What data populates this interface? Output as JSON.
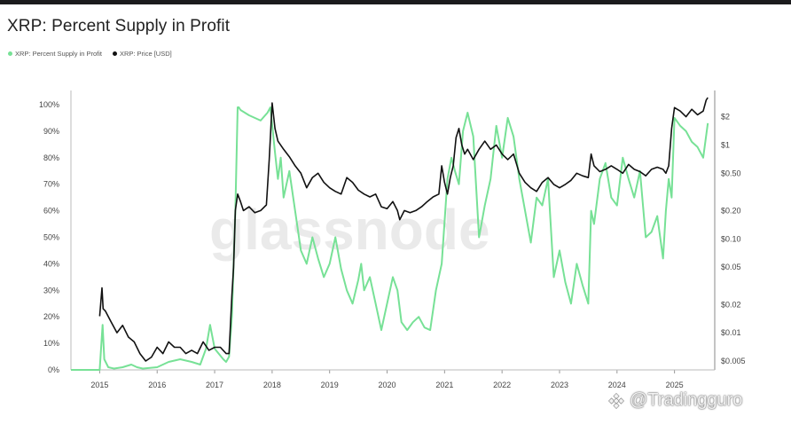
{
  "title": "XRP: Percent Supply in Profit",
  "watermark": "glassnode",
  "credit": "@Tradingguro",
  "colors": {
    "profit": "#77e196",
    "price": "#111111",
    "grid": "#e6e6e6"
  },
  "chart_data": {
    "type": "line",
    "title": "XRP: Percent Supply in Profit",
    "legend_position": "top-left",
    "grid": false,
    "x_ticks": [
      "2015",
      "2016",
      "2017",
      "2018",
      "2019",
      "2020",
      "2021",
      "2022",
      "2023",
      "2024",
      "2025"
    ],
    "x_range": [
      2014.5,
      2025.7
    ],
    "y_left": {
      "label": "",
      "range": [
        0,
        100
      ],
      "ticks": [
        "0%",
        "10%",
        "20%",
        "30%",
        "40%",
        "50%",
        "60%",
        "70%",
        "80%",
        "90%",
        "100%"
      ]
    },
    "y_right": {
      "label": "",
      "scale": "log",
      "ticks": [
        "$0.005",
        "$0.01",
        "$0.02",
        "$0.05",
        "$0.10",
        "$0.20",
        "$0.50",
        "$1",
        "$2"
      ]
    },
    "series": [
      {
        "name": "XRP: Percent Supply in Profit",
        "axis": "left",
        "x": [
          2014.5,
          2015.0,
          2015.05,
          2015.08,
          2015.15,
          2015.25,
          2015.4,
          2015.55,
          2015.65,
          2015.75,
          2016.0,
          2016.2,
          2016.4,
          2016.6,
          2016.75,
          2016.85,
          2016.92,
          2017.0,
          2017.15,
          2017.2,
          2017.25,
          2017.3,
          2017.36,
          2017.4,
          2017.42,
          2017.45,
          2017.6,
          2017.8,
          2017.92,
          2017.97,
          2018.05,
          2018.1,
          2018.15,
          2018.2,
          2018.3,
          2018.4,
          2018.5,
          2018.6,
          2018.7,
          2018.8,
          2018.9,
          2019.0,
          2019.1,
          2019.2,
          2019.3,
          2019.4,
          2019.5,
          2019.55,
          2019.6,
          2019.7,
          2019.8,
          2019.9,
          2020.0,
          2020.1,
          2020.18,
          2020.25,
          2020.35,
          2020.45,
          2020.55,
          2020.65,
          2020.75,
          2020.85,
          2020.95,
          2021.05,
          2021.12,
          2021.18,
          2021.25,
          2021.32,
          2021.4,
          2021.5,
          2021.6,
          2021.7,
          2021.8,
          2021.9,
          2022.0,
          2022.1,
          2022.2,
          2022.3,
          2022.4,
          2022.5,
          2022.6,
          2022.7,
          2022.8,
          2022.9,
          2023.0,
          2023.1,
          2023.2,
          2023.3,
          2023.4,
          2023.5,
          2023.55,
          2023.6,
          2023.7,
          2023.8,
          2023.9,
          2024.0,
          2024.1,
          2024.2,
          2024.3,
          2024.4,
          2024.5,
          2024.6,
          2024.7,
          2024.8,
          2024.85,
          2024.9,
          2024.95,
          2025.0,
          2025.1,
          2025.2,
          2025.3,
          2025.4,
          2025.5,
          2025.58
        ],
        "y": [
          0,
          0,
          17,
          4,
          1,
          0.5,
          1,
          2,
          1,
          0.5,
          1,
          3,
          4,
          3,
          2,
          8,
          17,
          8,
          4,
          3,
          5,
          20,
          60,
          99,
          99,
          98,
          96,
          94,
          97,
          99,
          82,
          72,
          80,
          65,
          75,
          60,
          45,
          40,
          50,
          42,
          35,
          40,
          50,
          38,
          30,
          25,
          34,
          40,
          30,
          35,
          25,
          15,
          25,
          35,
          30,
          18,
          15,
          18,
          20,
          16,
          15,
          30,
          40,
          72,
          80,
          75,
          70,
          90,
          97,
          88,
          50,
          62,
          72,
          92,
          80,
          95,
          88,
          72,
          60,
          48,
          65,
          62,
          72,
          35,
          45,
          33,
          25,
          40,
          32,
          25,
          60,
          55,
          72,
          78,
          65,
          62,
          80,
          72,
          65,
          75,
          50,
          52,
          58,
          42,
          60,
          72,
          65,
          95,
          92,
          90,
          86,
          84,
          80,
          93
        ]
      },
      {
        "name": "XRP: Price [USD]",
        "axis": "right",
        "x": [
          2015.0,
          2015.04,
          2015.06,
          2015.1,
          2015.2,
          2015.3,
          2015.4,
          2015.5,
          2015.6,
          2015.7,
          2015.8,
          2015.9,
          2016.0,
          2016.1,
          2016.2,
          2016.3,
          2016.4,
          2016.5,
          2016.6,
          2016.7,
          2016.8,
          2016.9,
          2017.0,
          2017.1,
          2017.2,
          2017.25,
          2017.3,
          2017.33,
          2017.36,
          2017.4,
          2017.45,
          2017.5,
          2017.6,
          2017.7,
          2017.8,
          2017.9,
          2017.95,
          2018.0,
          2018.05,
          2018.1,
          2018.2,
          2018.3,
          2018.4,
          2018.5,
          2018.6,
          2018.7,
          2018.8,
          2018.9,
          2019.0,
          2019.1,
          2019.2,
          2019.3,
          2019.4,
          2019.5,
          2019.6,
          2019.7,
          2019.8,
          2019.9,
          2020.0,
          2020.1,
          2020.18,
          2020.22,
          2020.3,
          2020.4,
          2020.5,
          2020.6,
          2020.7,
          2020.8,
          2020.9,
          2020.95,
          2021.0,
          2021.05,
          2021.1,
          2021.15,
          2021.2,
          2021.25,
          2021.3,
          2021.35,
          2021.4,
          2021.5,
          2021.6,
          2021.7,
          2021.8,
          2021.9,
          2022.0,
          2022.1,
          2022.2,
          2022.3,
          2022.4,
          2022.5,
          2022.6,
          2022.7,
          2022.8,
          2022.9,
          2023.0,
          2023.1,
          2023.2,
          2023.3,
          2023.4,
          2023.5,
          2023.55,
          2023.6,
          2023.7,
          2023.8,
          2023.9,
          2024.0,
          2024.1,
          2024.2,
          2024.3,
          2024.4,
          2024.5,
          2024.6,
          2024.7,
          2024.8,
          2024.85,
          2024.9,
          2024.95,
          2025.0,
          2025.1,
          2025.2,
          2025.3,
          2025.4,
          2025.5,
          2025.55,
          2025.58
        ],
        "y": [
          0.015,
          0.03,
          0.018,
          0.017,
          0.013,
          0.01,
          0.012,
          0.009,
          0.008,
          0.006,
          0.005,
          0.0055,
          0.007,
          0.006,
          0.008,
          0.007,
          0.007,
          0.006,
          0.0065,
          0.006,
          0.008,
          0.0065,
          0.007,
          0.007,
          0.006,
          0.006,
          0.025,
          0.05,
          0.2,
          0.3,
          0.25,
          0.2,
          0.22,
          0.19,
          0.2,
          0.23,
          0.7,
          2.8,
          1.5,
          1.1,
          0.9,
          0.75,
          0.6,
          0.5,
          0.35,
          0.45,
          0.5,
          0.4,
          0.35,
          0.32,
          0.3,
          0.45,
          0.4,
          0.33,
          0.3,
          0.28,
          0.3,
          0.22,
          0.21,
          0.25,
          0.2,
          0.16,
          0.2,
          0.19,
          0.2,
          0.22,
          0.25,
          0.28,
          0.3,
          0.6,
          0.4,
          0.3,
          0.45,
          0.6,
          1.2,
          1.5,
          1.0,
          0.8,
          0.9,
          0.7,
          0.9,
          1.1,
          0.9,
          1.0,
          0.8,
          0.7,
          0.8,
          0.5,
          0.4,
          0.35,
          0.32,
          0.4,
          0.45,
          0.38,
          0.35,
          0.38,
          0.42,
          0.5,
          0.47,
          0.45,
          0.8,
          0.6,
          0.52,
          0.55,
          0.6,
          0.55,
          0.5,
          0.62,
          0.55,
          0.52,
          0.47,
          0.55,
          0.58,
          0.55,
          0.5,
          0.6,
          1.5,
          2.5,
          2.3,
          2.0,
          2.4,
          2.1,
          2.3,
          3.0,
          3.2
        ]
      }
    ]
  }
}
